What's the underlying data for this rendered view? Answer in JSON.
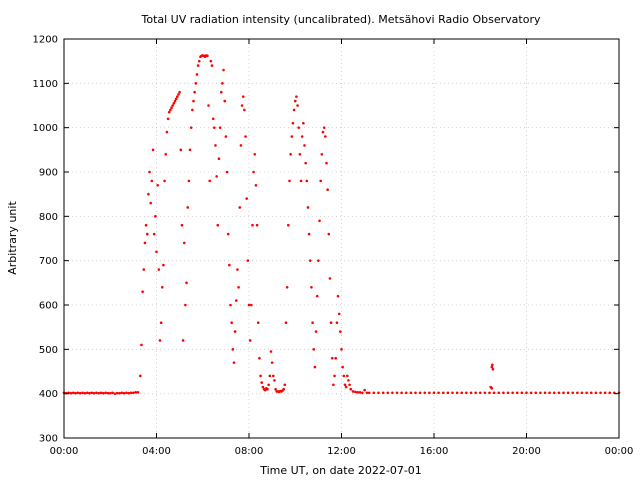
{
  "chart_data": {
    "type": "scatter",
    "title": "Total UV radiation intensity (uncalibrated). Metsähovi Radio Observatory",
    "xlabel": "Time UT, on date 2022-07-01",
    "ylabel": "Arbitrary unit",
    "x_unit": "hours UT",
    "xlim": [
      0,
      24
    ],
    "ylim": [
      300,
      1200
    ],
    "x_ticks": [
      0,
      4,
      8,
      12,
      16,
      20,
      24
    ],
    "x_tick_labels": [
      "00:00",
      "04:00",
      "08:00",
      "12:00",
      "16:00",
      "20:00",
      "00:00"
    ],
    "y_ticks": [
      300,
      400,
      500,
      600,
      700,
      800,
      900,
      1000,
      1100,
      1200
    ],
    "y_tick_labels": [
      "300",
      "400",
      "500",
      "600",
      "700",
      "800",
      "900",
      "1000",
      "1100",
      "1200"
    ],
    "grid": true,
    "legend": false,
    "series": [
      {
        "color": "#ff0000",
        "marker": "dot",
        "points": [
          [
            0.0,
            402
          ],
          [
            0.1,
            401
          ],
          [
            0.2,
            402
          ],
          [
            0.3,
            401
          ],
          [
            0.4,
            402
          ],
          [
            0.5,
            401
          ],
          [
            0.6,
            402
          ],
          [
            0.7,
            401
          ],
          [
            0.8,
            402
          ],
          [
            0.9,
            401
          ],
          [
            1.0,
            402
          ],
          [
            1.1,
            401
          ],
          [
            1.2,
            402
          ],
          [
            1.3,
            401
          ],
          [
            1.4,
            402
          ],
          [
            1.5,
            401
          ],
          [
            1.6,
            402
          ],
          [
            1.7,
            401
          ],
          [
            1.8,
            402
          ],
          [
            1.9,
            401
          ],
          [
            2.0,
            401
          ],
          [
            2.1,
            402
          ],
          [
            2.2,
            400
          ],
          [
            2.3,
            401
          ],
          [
            2.4,
            401
          ],
          [
            2.5,
            402
          ],
          [
            2.6,
            401
          ],
          [
            2.7,
            402
          ],
          [
            2.8,
            401
          ],
          [
            2.9,
            402
          ],
          [
            3.0,
            402
          ],
          [
            3.1,
            403
          ],
          [
            3.2,
            403
          ],
          [
            3.3,
            440
          ],
          [
            3.35,
            510
          ],
          [
            3.4,
            630
          ],
          [
            3.45,
            680
          ],
          [
            3.5,
            740
          ],
          [
            3.55,
            780
          ],
          [
            3.6,
            760
          ],
          [
            3.65,
            850
          ],
          [
            3.7,
            900
          ],
          [
            3.75,
            830
          ],
          [
            3.8,
            880
          ],
          [
            3.85,
            950
          ],
          [
            3.9,
            760
          ],
          [
            3.95,
            800
          ],
          [
            4.0,
            720
          ],
          [
            4.05,
            870
          ],
          [
            4.1,
            680
          ],
          [
            4.15,
            520
          ],
          [
            4.2,
            560
          ],
          [
            4.25,
            640
          ],
          [
            4.3,
            690
          ],
          [
            4.35,
            880
          ],
          [
            4.4,
            940
          ],
          [
            4.45,
            990
          ],
          [
            4.5,
            1020
          ],
          [
            4.55,
            1035
          ],
          [
            4.6,
            1040
          ],
          [
            4.65,
            1045
          ],
          [
            4.7,
            1050
          ],
          [
            4.75,
            1055
          ],
          [
            4.8,
            1060
          ],
          [
            4.85,
            1065
          ],
          [
            4.9,
            1070
          ],
          [
            4.95,
            1075
          ],
          [
            5.0,
            1080
          ],
          [
            5.05,
            950
          ],
          [
            5.1,
            780
          ],
          [
            5.15,
            520
          ],
          [
            5.2,
            740
          ],
          [
            5.25,
            600
          ],
          [
            5.3,
            650
          ],
          [
            5.35,
            820
          ],
          [
            5.4,
            880
          ],
          [
            5.45,
            950
          ],
          [
            5.5,
            1000
          ],
          [
            5.55,
            1040
          ],
          [
            5.6,
            1060
          ],
          [
            5.65,
            1080
          ],
          [
            5.7,
            1100
          ],
          [
            5.75,
            1120
          ],
          [
            5.8,
            1140
          ],
          [
            5.85,
            1150
          ],
          [
            5.9,
            1160
          ],
          [
            5.95,
            1162
          ],
          [
            6.0,
            1163
          ],
          [
            6.05,
            1162
          ],
          [
            6.1,
            1160
          ],
          [
            6.15,
            1163
          ],
          [
            6.2,
            1162
          ],
          [
            6.25,
            1050
          ],
          [
            6.3,
            880
          ],
          [
            6.35,
            1150
          ],
          [
            6.4,
            1140
          ],
          [
            6.45,
            1020
          ],
          [
            6.5,
            1000
          ],
          [
            6.55,
            960
          ],
          [
            6.6,
            890
          ],
          [
            6.65,
            780
          ],
          [
            6.7,
            930
          ],
          [
            6.75,
            1000
          ],
          [
            6.8,
            1080
          ],
          [
            6.85,
            1100
          ],
          [
            6.9,
            1130
          ],
          [
            6.95,
            1060
          ],
          [
            7.0,
            980
          ],
          [
            7.05,
            900
          ],
          [
            7.1,
            760
          ],
          [
            7.15,
            690
          ],
          [
            7.2,
            600
          ],
          [
            7.25,
            560
          ],
          [
            7.3,
            500
          ],
          [
            7.35,
            470
          ],
          [
            7.4,
            540
          ],
          [
            7.45,
            610
          ],
          [
            7.5,
            680
          ],
          [
            7.55,
            640
          ],
          [
            7.6,
            820
          ],
          [
            7.65,
            960
          ],
          [
            7.7,
            1050
          ],
          [
            7.75,
            1070
          ],
          [
            7.8,
            1040
          ],
          [
            7.85,
            980
          ],
          [
            7.9,
            840
          ],
          [
            7.95,
            700
          ],
          [
            8.0,
            600
          ],
          [
            8.05,
            520
          ],
          [
            8.1,
            600
          ],
          [
            8.15,
            780
          ],
          [
            8.2,
            900
          ],
          [
            8.25,
            940
          ],
          [
            8.3,
            870
          ],
          [
            8.35,
            780
          ],
          [
            8.4,
            560
          ],
          [
            8.45,
            480
          ],
          [
            8.5,
            440
          ],
          [
            8.55,
            425
          ],
          [
            8.6,
            415
          ],
          [
            8.65,
            410
          ],
          [
            8.7,
            408
          ],
          [
            8.75,
            412
          ],
          [
            8.8,
            410
          ],
          [
            8.85,
            420
          ],
          [
            8.9,
            440
          ],
          [
            8.95,
            495
          ],
          [
            9.0,
            470
          ],
          [
            9.05,
            440
          ],
          [
            9.1,
            430
          ],
          [
            9.15,
            410
          ],
          [
            9.2,
            405
          ],
          [
            9.25,
            405
          ],
          [
            9.3,
            404
          ],
          [
            9.35,
            406
          ],
          [
            9.4,
            405
          ],
          [
            9.45,
            407
          ],
          [
            9.5,
            410
          ],
          [
            9.55,
            420
          ],
          [
            9.6,
            560
          ],
          [
            9.65,
            640
          ],
          [
            9.7,
            780
          ],
          [
            9.75,
            880
          ],
          [
            9.8,
            940
          ],
          [
            9.85,
            980
          ],
          [
            9.9,
            1010
          ],
          [
            9.95,
            1040
          ],
          [
            10.0,
            1060
          ],
          [
            10.05,
            1070
          ],
          [
            10.1,
            1050
          ],
          [
            10.15,
            1000
          ],
          [
            10.2,
            940
          ],
          [
            10.25,
            880
          ],
          [
            10.3,
            980
          ],
          [
            10.35,
            1010
          ],
          [
            10.4,
            960
          ],
          [
            10.45,
            920
          ],
          [
            10.5,
            880
          ],
          [
            10.55,
            820
          ],
          [
            10.6,
            760
          ],
          [
            10.65,
            700
          ],
          [
            10.7,
            640
          ],
          [
            10.75,
            560
          ],
          [
            10.8,
            500
          ],
          [
            10.85,
            460
          ],
          [
            10.9,
            540
          ],
          [
            10.95,
            620
          ],
          [
            11.0,
            700
          ],
          [
            11.05,
            790
          ],
          [
            11.1,
            880
          ],
          [
            11.15,
            940
          ],
          [
            11.2,
            990
          ],
          [
            11.25,
            1000
          ],
          [
            11.3,
            980
          ],
          [
            11.35,
            920
          ],
          [
            11.4,
            860
          ],
          [
            11.45,
            760
          ],
          [
            11.5,
            660
          ],
          [
            11.55,
            560
          ],
          [
            11.6,
            480
          ],
          [
            11.65,
            420
          ],
          [
            11.7,
            440
          ],
          [
            11.75,
            480
          ],
          [
            11.8,
            560
          ],
          [
            11.85,
            620
          ],
          [
            11.9,
            580
          ],
          [
            11.95,
            540
          ],
          [
            12.0,
            500
          ],
          [
            12.05,
            460
          ],
          [
            12.1,
            440
          ],
          [
            12.15,
            420
          ],
          [
            12.2,
            415
          ],
          [
            12.25,
            440
          ],
          [
            12.3,
            430
          ],
          [
            12.35,
            420
          ],
          [
            12.4,
            410
          ],
          [
            12.5,
            405
          ],
          [
            12.6,
            404
          ],
          [
            12.7,
            403
          ],
          [
            12.8,
            403
          ],
          [
            12.9,
            402
          ],
          [
            13.0,
            408
          ],
          [
            13.1,
            402
          ],
          [
            13.2,
            402
          ],
          [
            13.4,
            402
          ],
          [
            13.6,
            402
          ],
          [
            13.8,
            402
          ],
          [
            14.0,
            402
          ],
          [
            14.2,
            402
          ],
          [
            14.4,
            402
          ],
          [
            14.6,
            402
          ],
          [
            14.8,
            402
          ],
          [
            15.0,
            402
          ],
          [
            15.2,
            402
          ],
          [
            15.4,
            402
          ],
          [
            15.6,
            402
          ],
          [
            15.8,
            402
          ],
          [
            16.0,
            402
          ],
          [
            16.2,
            402
          ],
          [
            16.4,
            402
          ],
          [
            16.6,
            402
          ],
          [
            16.8,
            402
          ],
          [
            17.0,
            402
          ],
          [
            17.2,
            402
          ],
          [
            17.4,
            402
          ],
          [
            17.6,
            402
          ],
          [
            17.8,
            402
          ],
          [
            18.0,
            402
          ],
          [
            18.2,
            402
          ],
          [
            18.4,
            402
          ],
          [
            18.45,
            415
          ],
          [
            18.5,
            412
          ],
          [
            18.5,
            460
          ],
          [
            18.52,
            465
          ],
          [
            18.55,
            455
          ],
          [
            18.6,
            402
          ],
          [
            18.8,
            402
          ],
          [
            19.0,
            402
          ],
          [
            19.2,
            402
          ],
          [
            19.4,
            402
          ],
          [
            19.6,
            402
          ],
          [
            19.8,
            402
          ],
          [
            20.0,
            402
          ],
          [
            20.2,
            402
          ],
          [
            20.4,
            402
          ],
          [
            20.6,
            402
          ],
          [
            20.8,
            402
          ],
          [
            21.0,
            402
          ],
          [
            21.2,
            402
          ],
          [
            21.4,
            402
          ],
          [
            21.6,
            402
          ],
          [
            21.8,
            402
          ],
          [
            22.0,
            402
          ],
          [
            22.2,
            402
          ],
          [
            22.4,
            402
          ],
          [
            22.6,
            402
          ],
          [
            22.8,
            402
          ],
          [
            23.0,
            402
          ],
          [
            23.2,
            402
          ],
          [
            23.4,
            402
          ],
          [
            23.6,
            402
          ],
          [
            23.8,
            402
          ],
          [
            24.0,
            402
          ]
        ]
      }
    ]
  }
}
